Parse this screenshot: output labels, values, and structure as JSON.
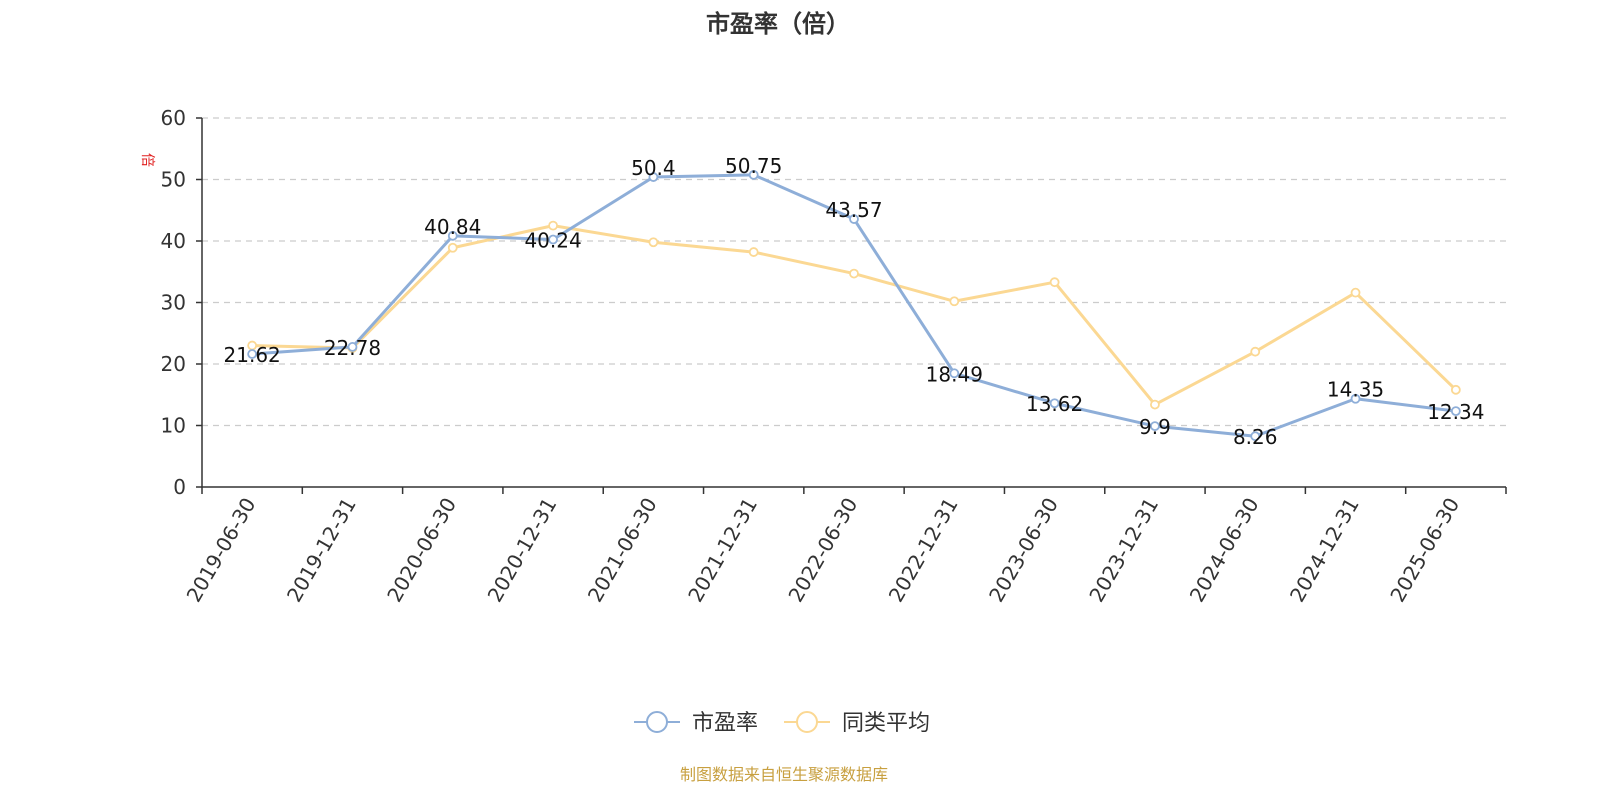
{
  "chart_data": {
    "type": "line",
    "title": "市盈率（倍）",
    "ylabel": "倍",
    "ylim": [
      0,
      60
    ],
    "yticks": [
      0,
      10,
      20,
      30,
      40,
      50,
      60
    ],
    "grid": true,
    "legend_position": "bottom",
    "categories": [
      "2019-06-30",
      "2019-12-31",
      "2020-06-30",
      "2020-12-31",
      "2021-06-30",
      "2021-12-31",
      "2022-06-30",
      "2022-12-31",
      "2023-06-30",
      "2023-12-31",
      "2024-06-30",
      "2024-12-31",
      "2025-06-30"
    ],
    "series": [
      {
        "name": "市盈率",
        "color": "#8eaed8",
        "values": [
          21.62,
          22.78,
          40.84,
          40.24,
          50.4,
          50.75,
          43.57,
          18.49,
          13.62,
          9.9,
          8.26,
          14.35,
          12.34
        ],
        "labels": [
          "21.62",
          "22.78",
          "40.84",
          "40.24",
          "50.4",
          "50.75",
          "43.57",
          "18.49",
          "13.62",
          "9.9",
          "8.26",
          "14.35",
          "12.34"
        ]
      },
      {
        "name": "同类平均",
        "color": "#fbd893",
        "values": [
          23.0,
          22.6,
          38.9,
          42.5,
          39.8,
          38.2,
          34.7,
          30.2,
          33.3,
          13.4,
          22.0,
          31.6,
          15.8
        ]
      }
    ],
    "source": "制图数据来自恒生聚源数据库"
  }
}
